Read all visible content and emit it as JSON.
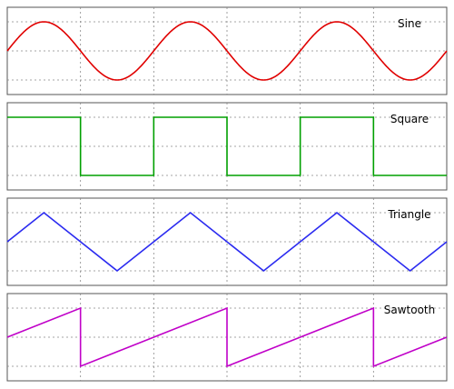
{
  "panels": [
    {
      "id": "sine",
      "label": "Sine",
      "color": "#e00000",
      "waveform": "sine",
      "cycles": 3
    },
    {
      "id": "square",
      "label": "Square",
      "color": "#00a000",
      "waveform": "square",
      "cycles": 3
    },
    {
      "id": "triangle",
      "label": "Triangle",
      "color": "#2b2bf0",
      "waveform": "triangle",
      "cycles": 3
    },
    {
      "id": "sawtooth",
      "label": "Sawtooth",
      "color": "#c000c8",
      "waveform": "sawtooth",
      "cycles": 3
    }
  ]
}
